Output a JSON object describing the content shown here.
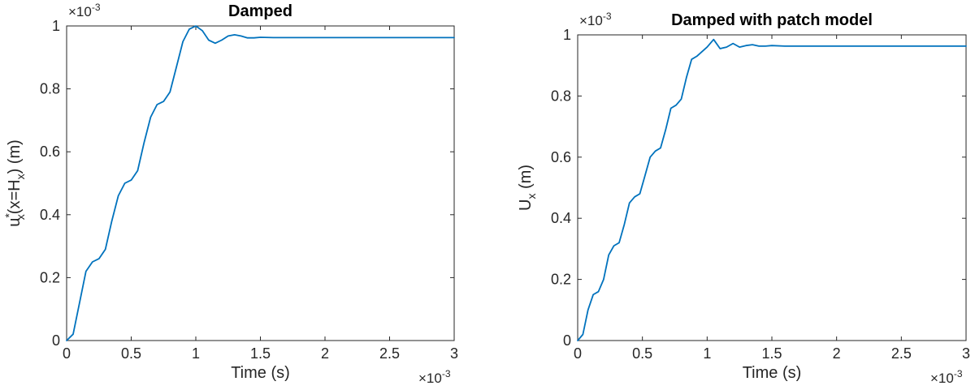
{
  "chart_data": [
    {
      "type": "line",
      "title": "Damped",
      "xlabel": "Time (s)",
      "ylabel": {
        "base": "u",
        "sup": "*",
        "sub": "x",
        "mid": "(x=H",
        "sub2": "x",
        "end": ") (m)"
      },
      "x_exponent": {
        "base": "×10",
        "power": "-3"
      },
      "y_exponent": {
        "base": "×10",
        "power": "-3"
      },
      "xlim": [
        0,
        3
      ],
      "ylim": [
        0,
        1
      ],
      "xticks": [
        "0",
        "0.5",
        "1",
        "1.5",
        "2",
        "2.5",
        "3"
      ],
      "yticks": [
        "0",
        "0.2",
        "0.4",
        "0.6",
        "0.8",
        "1"
      ],
      "color": "#0072BD",
      "grid": false,
      "series": [
        {
          "x": [
            0,
            0.05,
            0.1,
            0.15,
            0.2,
            0.25,
            0.3,
            0.35,
            0.4,
            0.45,
            0.5,
            0.55,
            0.6,
            0.65,
            0.7,
            0.75,
            0.8,
            0.85,
            0.9,
            0.95,
            1.0,
            1.05,
            1.1,
            1.15,
            1.2,
            1.25,
            1.3,
            1.35,
            1.4,
            1.45,
            1.5,
            1.6,
            1.8,
            2.0,
            2.5,
            3.0
          ],
          "y": [
            0,
            0.02,
            0.12,
            0.22,
            0.25,
            0.26,
            0.29,
            0.38,
            0.46,
            0.5,
            0.51,
            0.54,
            0.63,
            0.71,
            0.75,
            0.76,
            0.79,
            0.87,
            0.95,
            0.99,
            1.0,
            0.985,
            0.955,
            0.945,
            0.955,
            0.968,
            0.972,
            0.968,
            0.962,
            0.962,
            0.964,
            0.963,
            0.963,
            0.963,
            0.963,
            0.963
          ]
        }
      ]
    },
    {
      "type": "line",
      "title": "Damped with patch model",
      "xlabel": "Time (s)",
      "ylabel": {
        "base": "U",
        "sub": "x",
        "end": " (m)"
      },
      "x_exponent": {
        "base": "×10",
        "power": "-3"
      },
      "y_exponent": {
        "base": "×10",
        "power": "-3"
      },
      "xlim": [
        0,
        3
      ],
      "ylim": [
        0,
        1
      ],
      "xticks": [
        "0",
        "0.5",
        "1",
        "1.5",
        "2",
        "2.5",
        "3"
      ],
      "yticks": [
        "0",
        "0.2",
        "0.4",
        "0.6",
        "0.8",
        "1"
      ],
      "color": "#0072BD",
      "grid": false,
      "series": [
        {
          "x": [
            0,
            0.04,
            0.08,
            0.12,
            0.16,
            0.2,
            0.24,
            0.28,
            0.32,
            0.36,
            0.4,
            0.44,
            0.48,
            0.52,
            0.56,
            0.6,
            0.64,
            0.68,
            0.72,
            0.76,
            0.8,
            0.84,
            0.88,
            0.92,
            0.96,
            1.0,
            1.05,
            1.1,
            1.15,
            1.2,
            1.25,
            1.3,
            1.35,
            1.4,
            1.45,
            1.5,
            1.6,
            1.8,
            2.0,
            2.5,
            3.0
          ],
          "y": [
            0,
            0.02,
            0.1,
            0.15,
            0.16,
            0.2,
            0.28,
            0.31,
            0.32,
            0.38,
            0.45,
            0.47,
            0.48,
            0.54,
            0.6,
            0.62,
            0.63,
            0.69,
            0.76,
            0.77,
            0.79,
            0.86,
            0.92,
            0.93,
            0.945,
            0.96,
            0.985,
            0.955,
            0.96,
            0.972,
            0.96,
            0.965,
            0.968,
            0.963,
            0.963,
            0.965,
            0.963,
            0.963,
            0.963,
            0.963,
            0.963
          ]
        }
      ]
    }
  ]
}
